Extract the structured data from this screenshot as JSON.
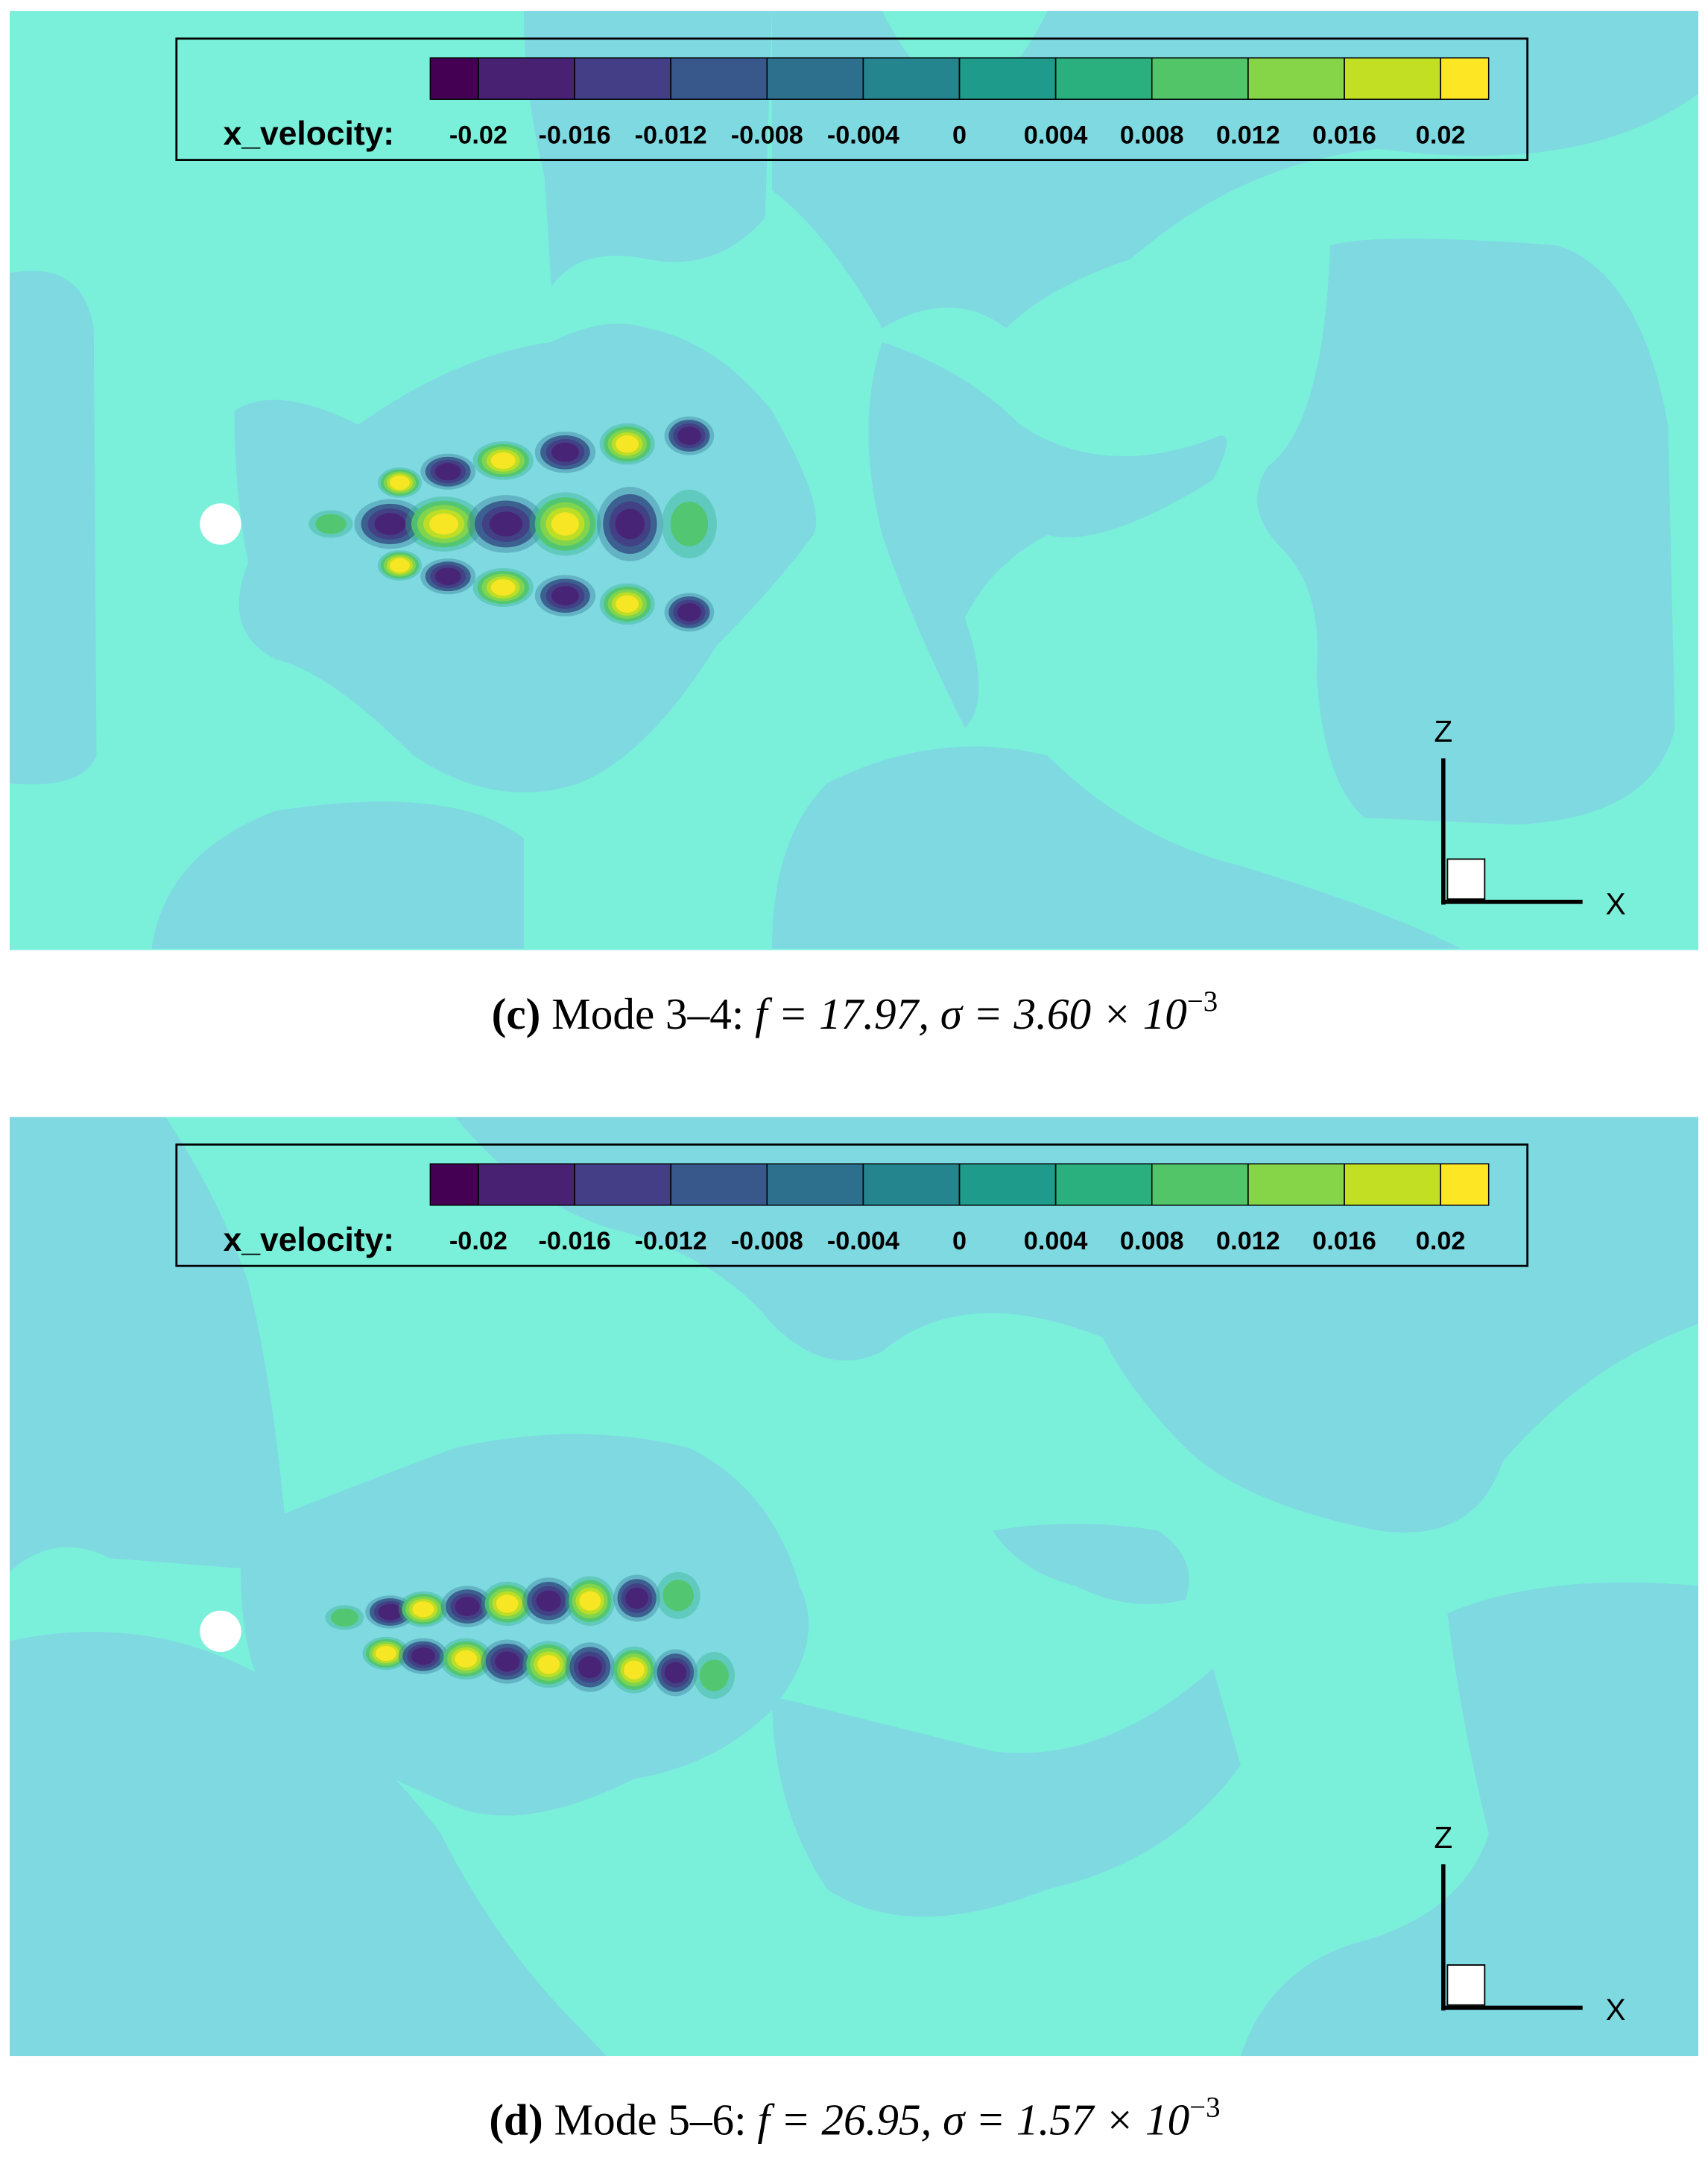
{
  "panels": [
    {
      "colorbar": {
        "label": "x_velocity:",
        "ticks": [
          -0.02,
          -0.016,
          -0.012,
          -0.008,
          -0.004,
          0,
          0.004,
          0.008,
          0.012,
          0.016,
          0.02
        ],
        "colors": [
          "#440154",
          "#482173",
          "#433e85",
          "#38588c",
          "#2d708e",
          "#25858e",
          "#1e9b8a",
          "#2ab07f",
          "#52c569",
          "#86d549",
          "#c2df23",
          "#fde725"
        ]
      },
      "axes": {
        "z": "Z",
        "x": "X"
      },
      "caption": {
        "label": "(c)",
        "text": "Mode 3–4:",
        "math": "f = 17.97, σ = 3.60 × 10",
        "exponent": "−3"
      }
    },
    {
      "colorbar": {
        "label": "x_velocity:",
        "ticks": [
          -0.02,
          -0.016,
          -0.012,
          -0.008,
          -0.004,
          0,
          0.004,
          0.008,
          0.012,
          0.016,
          0.02
        ],
        "colors": [
          "#440154",
          "#482173",
          "#433e85",
          "#38588c",
          "#2d708e",
          "#25858e",
          "#1e9b8a",
          "#2ab07f",
          "#52c569",
          "#86d549",
          "#c2df23",
          "#fde725"
        ]
      },
      "axes": {
        "z": "Z",
        "x": "X"
      },
      "caption": {
        "label": "(d)",
        "text": "Mode 5–6:",
        "math": "f = 26.95, σ = 1.57 × 10",
        "exponent": "−3"
      }
    }
  ]
}
